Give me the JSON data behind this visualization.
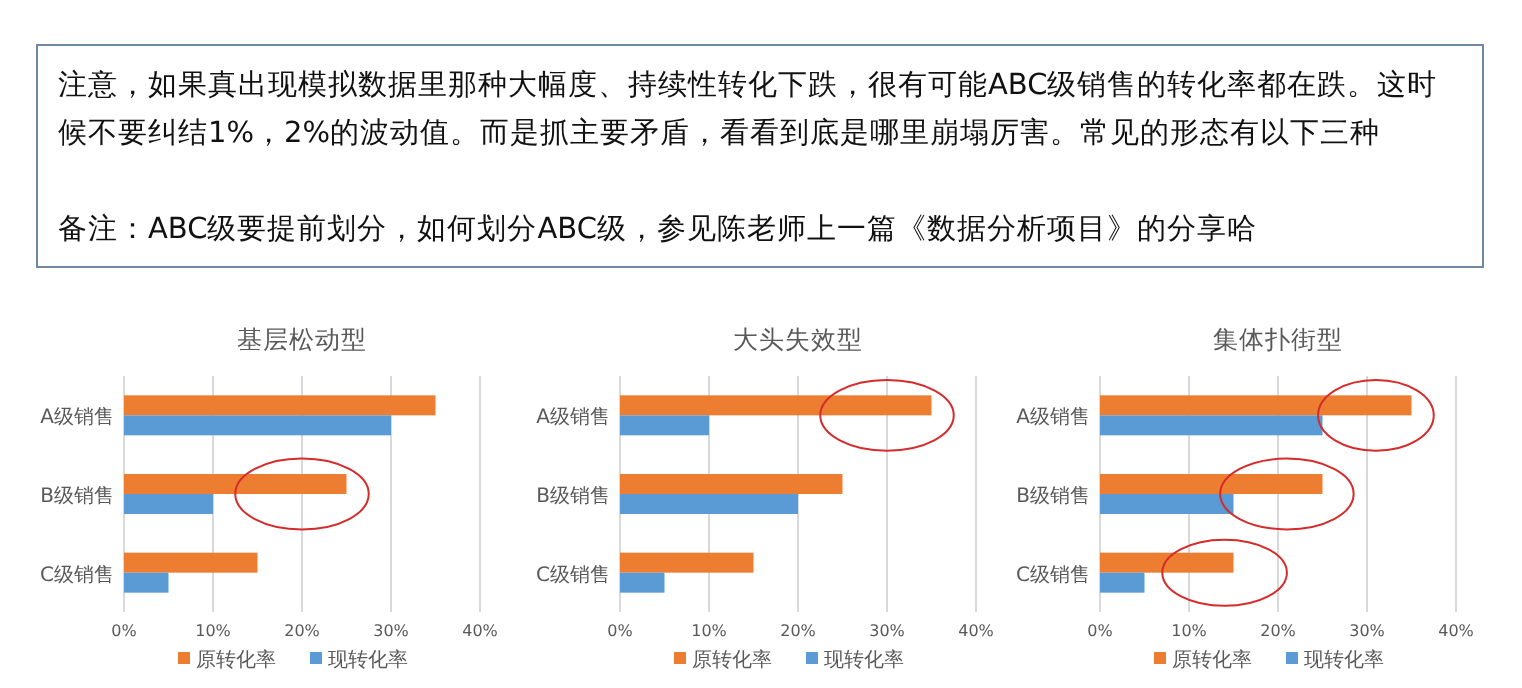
{
  "chart_data": [
    {
      "type": "other",
      "annotations": [
        "注意，如果真出现模拟数据里那种大幅度、持续性转化下跌，很有可能ABC级销售的转化率都在跌。这时候不要纠结1%，2%的波动值。而是抓主要矛盾，看看到底是哪里崩塌厉害。常见的形态有以下三种",
        "备注：ABC级要提前划分，如何划分ABC级，参见陈老师上一篇《数据分析项目》的分享哈"
      ]
    },
    {
      "type": "bar",
      "orientation": "horizontal",
      "title": "基层松动型",
      "categories": [
        "A级销售",
        "B级销售",
        "C级销售"
      ],
      "series": [
        {
          "name": "原转化率",
          "color": "#ed7d31",
          "values": [
            35,
            25,
            15
          ]
        },
        {
          "name": "现转化率",
          "color": "#5b9bd5",
          "values": [
            30,
            10,
            5
          ]
        }
      ],
      "xlim": [
        0,
        40
      ],
      "xticks": [
        {
          "value": 0,
          "label": "0%"
        },
        {
          "value": 10,
          "label": "10%"
        },
        {
          "value": 20,
          "label": "20%"
        },
        {
          "value": 30,
          "label": "30%"
        },
        {
          "value": 40,
          "label": "40%"
        }
      ],
      "grid": "x",
      "legend": "bottom"
    },
    {
      "type": "bar",
      "orientation": "horizontal",
      "title": "大头失效型",
      "categories": [
        "A级销售",
        "B级销售",
        "C级销售"
      ],
      "series": [
        {
          "name": "原转化率",
          "color": "#ed7d31",
          "values": [
            35,
            25,
            15
          ]
        },
        {
          "name": "现转化率",
          "color": "#5b9bd5",
          "values": [
            10,
            20,
            5
          ]
        }
      ],
      "xlim": [
        0,
        40
      ],
      "xticks": [
        {
          "value": 0,
          "label": "0%"
        },
        {
          "value": 10,
          "label": "10%"
        },
        {
          "value": 20,
          "label": "20%"
        },
        {
          "value": 30,
          "label": "30%"
        },
        {
          "value": 40,
          "label": "40%"
        }
      ],
      "grid": "x",
      "legend": "bottom"
    },
    {
      "type": "bar",
      "orientation": "horizontal",
      "title": "集体扑街型",
      "categories": [
        "A级销售",
        "B级销售",
        "C级销售"
      ],
      "series": [
        {
          "name": "原转化率",
          "color": "#ed7d31",
          "values": [
            35,
            25,
            15
          ]
        },
        {
          "name": "现转化率",
          "color": "#5b9bd5",
          "values": [
            25,
            15,
            5
          ]
        }
      ],
      "xlim": [
        0,
        40
      ],
      "xticks": [
        {
          "value": 0,
          "label": "0%"
        },
        {
          "value": 10,
          "label": "10%"
        },
        {
          "value": 20,
          "label": "20%"
        },
        {
          "value": 30,
          "label": "30%"
        },
        {
          "value": 40,
          "label": "40%"
        }
      ],
      "grid": "x",
      "legend": "bottom"
    }
  ]
}
